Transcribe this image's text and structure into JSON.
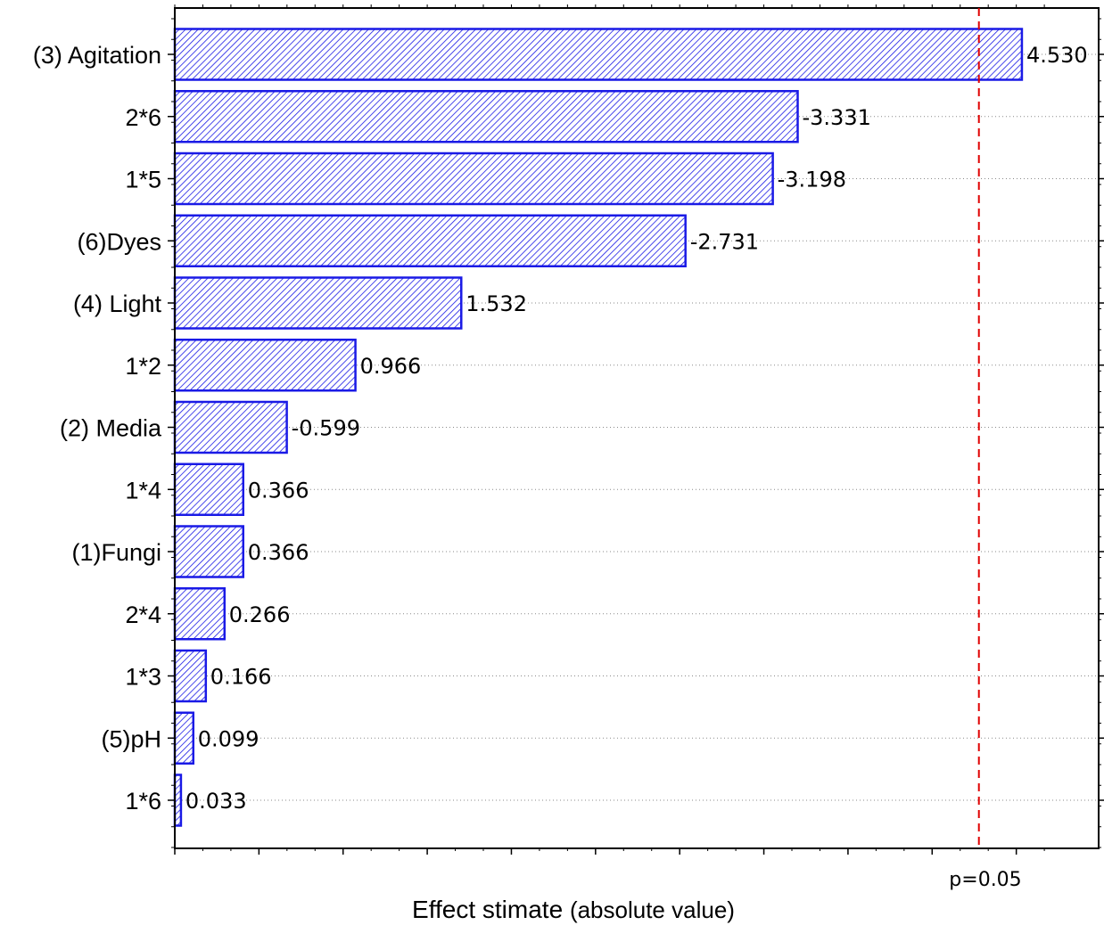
{
  "chart_data": {
    "type": "bar",
    "orientation": "horizontal",
    "title": "",
    "xlabel": "Effect stimate",
    "xlabel_note": "(absolute value)",
    "ylabel": "",
    "xlim": [
      0,
      4.75
    ],
    "categories": [
      "(3) Agitation",
      "2*6",
      "1*5",
      "(6)Dyes",
      "(4) Light",
      "1*2",
      "(2) Media",
      "1*4",
      "(1)Fungi",
      "2*4",
      "1*3",
      "(5)pH",
      "1*6"
    ],
    "values": [
      4.53,
      3.331,
      3.198,
      2.731,
      1.532,
      0.966,
      0.599,
      0.366,
      0.366,
      0.266,
      0.166,
      0.099,
      0.033
    ],
    "value_labels": [
      "4.530",
      "-3.331",
      "-3.198",
      "-2.731",
      "1.532",
      "0.966",
      "-0.599",
      "0.366",
      "0.366",
      "0.266",
      "0.166",
      "0.099",
      "0.033"
    ],
    "reference_line": {
      "value": 4.3,
      "label": "p=0.05",
      "color": "#e00000",
      "style": "dashed"
    },
    "bar_color": "#1a1ae6",
    "bar_fill": "hatched",
    "grid": "dotted horizontal at bars",
    "legend": "none"
  }
}
